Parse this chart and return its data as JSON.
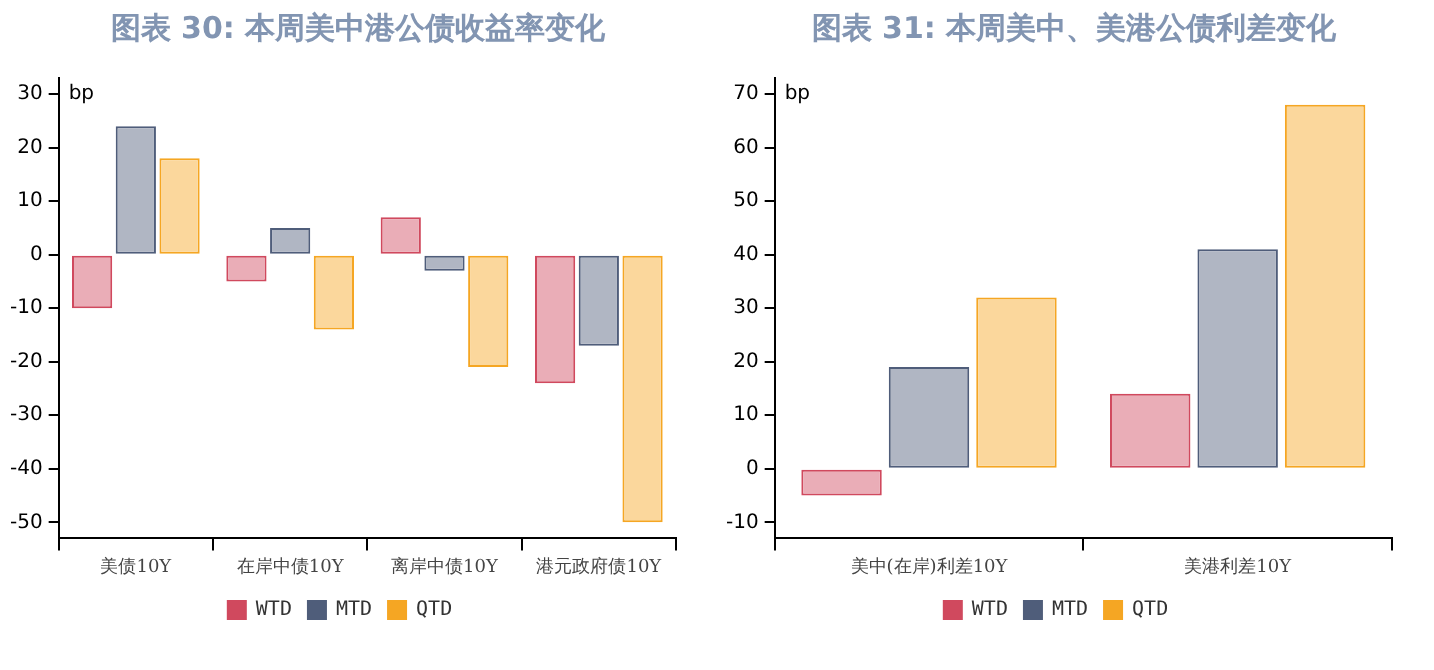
{
  "chart_data": [
    {
      "type": "bar",
      "title": "图表 30: 本周美中港公债收益率变化",
      "ylabel": "bp",
      "categories": [
        "美债10Y",
        "在岸中债10Y",
        "离岸中债10Y",
        "港元政府债10Y"
      ],
      "series": [
        {
          "name": "WTD",
          "color": "#d0495e",
          "values": [
            -10,
            -5,
            7,
            -24
          ]
        },
        {
          "name": "MTD",
          "color": "#4f5d7a",
          "values": [
            24,
            5,
            -3,
            -17
          ]
        },
        {
          "name": "QTD",
          "color": "#f5a623",
          "values": [
            18,
            -14,
            -21,
            -50
          ]
        }
      ],
      "ylim": [
        -53,
        33
      ],
      "yticks": [
        -50,
        -40,
        -30,
        -20,
        -10,
        0,
        10,
        20,
        30
      ],
      "grid": false,
      "legend": "bottom"
    },
    {
      "type": "bar",
      "title": "图表 31: 本周美中、美港公债利差变化",
      "ylabel": "bp",
      "categories": [
        "美中(在岸)利差10Y",
        "美港利差10Y"
      ],
      "series": [
        {
          "name": "WTD",
          "color": "#d0495e",
          "values": [
            -5,
            14
          ]
        },
        {
          "name": "MTD",
          "color": "#4f5d7a",
          "values": [
            19,
            41
          ]
        },
        {
          "name": "QTD",
          "color": "#f5a623",
          "values": [
            32,
            68
          ]
        }
      ],
      "ylim": [
        -13,
        73
      ],
      "yticks": [
        -10,
        0,
        10,
        20,
        30,
        40,
        50,
        60,
        70
      ],
      "grid": false,
      "legend": "bottom"
    }
  ]
}
